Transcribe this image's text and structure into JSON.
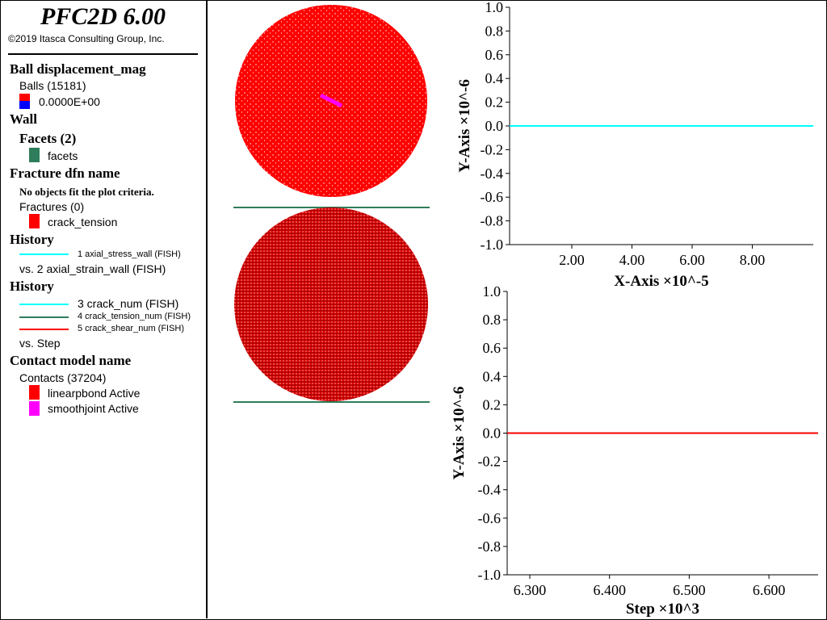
{
  "app": {
    "title": "PFC2D 6.00",
    "copyright": "©2019 Itasca Consulting Group, Inc."
  },
  "legend": {
    "ball": {
      "heading": "Ball displacement_mag",
      "count_label": "Balls (15181)",
      "value_label": "0.0000E+00",
      "colors": [
        "#ff0000",
        "#0000ff"
      ]
    },
    "wall": {
      "heading": "Wall",
      "facets_heading": "Facets (2)",
      "facets_label": "facets",
      "facets_color": "#2e7d5b"
    },
    "fracture": {
      "heading": "Fracture dfn name",
      "note": "No objects fit the plot criteria.",
      "count_label": "Fractures (0)",
      "item_label": "crack_tension",
      "item_color": "#ff0000"
    },
    "history1": {
      "heading": "History",
      "item1": "1 axial_stress_wall (FISH)",
      "item1_color": "#00ffff",
      "vs": "vs. 2 axial_strain_wall (FISH)"
    },
    "history2": {
      "heading": "History",
      "item3": "3 crack_num (FISH)",
      "item3_color": "#00ffff",
      "item4": "4 crack_tension_num (FISH)",
      "item4_color": "#2e7d5b",
      "item5": "5 crack_shear_num (FISH)",
      "item5_color": "#ff0000",
      "vs": "vs. Step"
    },
    "contact": {
      "heading": "Contact model name",
      "count_label": "Contacts (37204)",
      "item1": "linearpbond Active",
      "item1_color": "#ff0000",
      "item2": "smoothjoint Active",
      "item2_color": "#ff00ff"
    }
  },
  "chart_data": [
    {
      "type": "line",
      "xlabel": "X-Axis ×10^-5",
      "ylabel": "Y-Axis ×10^-6",
      "ylim": [
        -1.0,
        1.0
      ],
      "y_ticks": [
        "1.0",
        "0.8",
        "0.6",
        "0.4",
        "0.2",
        "0.0",
        "-0.2",
        "-0.4",
        "-0.6",
        "-0.8",
        "-1.0"
      ],
      "x_ticks": [
        "2.00",
        "4.00",
        "6.00",
        "8.00"
      ],
      "series": [
        {
          "values": [
            0,
            0
          ],
          "color": "#00ffff"
        }
      ]
    },
    {
      "type": "line",
      "xlabel": "Step ×10^3",
      "ylabel": "Y-Axis ×10^-6",
      "ylim": [
        -1.0,
        1.0
      ],
      "y_ticks": [
        "1.0",
        "0.8",
        "0.6",
        "0.4",
        "0.2",
        "0.0",
        "-0.2",
        "-0.4",
        "-0.6",
        "-0.8",
        "-1.0"
      ],
      "x_ticks": [
        "6.300",
        "6.400",
        "6.500",
        "6.600"
      ],
      "series": [
        {
          "values": [
            0,
            0
          ],
          "color": "#ff0000"
        }
      ]
    }
  ]
}
